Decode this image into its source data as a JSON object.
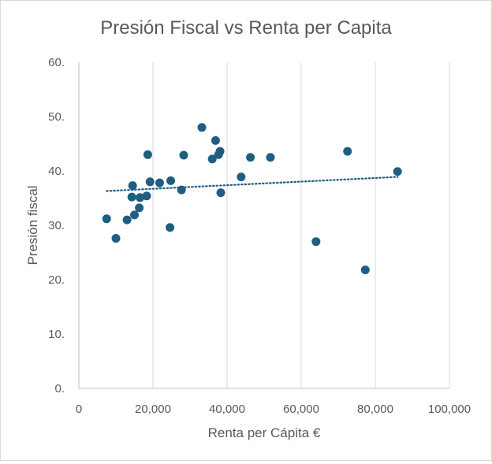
{
  "chart_data": {
    "type": "scatter",
    "title": "Presión Fiscal vs Renta per Capita",
    "xlabel": "Renta per Cápita €",
    "ylabel": "Presión fiscal",
    "xlim": [
      0,
      100000
    ],
    "ylim": [
      0,
      60
    ],
    "x_ticks": [
      0,
      20000,
      40000,
      60000,
      80000,
      100000
    ],
    "x_tick_labels": [
      "0",
      "20,000",
      "40,000",
      "60,000",
      "80,000",
      "100,000"
    ],
    "y_ticks": [
      0,
      10,
      20,
      30,
      40,
      50,
      60
    ],
    "y_tick_labels": [
      "0.",
      "10.",
      "20.",
      "30.",
      "40.",
      "50.",
      "60."
    ],
    "grid": "vertical",
    "marker_color": "#1f5e80",
    "trendline": {
      "type": "linear",
      "style": "dotted",
      "color": "#1f5e80",
      "x": [
        7500,
        86000
      ],
      "y": [
        36.3,
        38.9
      ]
    },
    "points": [
      {
        "x": 7500,
        "y": 31.2
      },
      {
        "x": 10000,
        "y": 27.6
      },
      {
        "x": 13000,
        "y": 31.0
      },
      {
        "x": 14300,
        "y": 35.2
      },
      {
        "x": 14500,
        "y": 37.3
      },
      {
        "x": 15000,
        "y": 31.9
      },
      {
        "x": 16300,
        "y": 33.2
      },
      {
        "x": 16500,
        "y": 35.1
      },
      {
        "x": 18300,
        "y": 35.4
      },
      {
        "x": 18600,
        "y": 43.0
      },
      {
        "x": 19200,
        "y": 38.0
      },
      {
        "x": 21800,
        "y": 37.8
      },
      {
        "x": 24600,
        "y": 29.6
      },
      {
        "x": 24800,
        "y": 38.2
      },
      {
        "x": 27700,
        "y": 36.5
      },
      {
        "x": 28300,
        "y": 42.9
      },
      {
        "x": 33200,
        "y": 48.0
      },
      {
        "x": 36000,
        "y": 42.2
      },
      {
        "x": 36900,
        "y": 45.6
      },
      {
        "x": 37700,
        "y": 43.0
      },
      {
        "x": 38100,
        "y": 43.6
      },
      {
        "x": 38300,
        "y": 36.0
      },
      {
        "x": 43800,
        "y": 38.9
      },
      {
        "x": 46300,
        "y": 42.5
      },
      {
        "x": 51700,
        "y": 42.5
      },
      {
        "x": 64000,
        "y": 27.0
      },
      {
        "x": 72500,
        "y": 43.6
      },
      {
        "x": 77300,
        "y": 21.8
      },
      {
        "x": 86000,
        "y": 39.9
      }
    ]
  }
}
